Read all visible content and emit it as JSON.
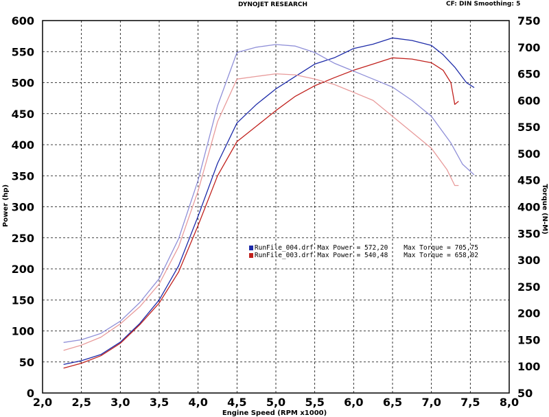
{
  "header": {
    "title": "DYNOJET RESEARCH",
    "settings": "CF: DIN  Smoothing: 5"
  },
  "chart_data": {
    "type": "line",
    "xlabel": "Engine Speed (RPM x1000)",
    "ylabel_left": "Power (hp)",
    "ylabel_right": "Torque (N-M)",
    "xlim": [
      2.0,
      8.0
    ],
    "ylim_left": [
      0,
      600
    ],
    "ylim_right": [
      50,
      750
    ],
    "x_ticks": [
      "2,0",
      "2,5",
      "3,0",
      "3,5",
      "4,0",
      "4,5",
      "5,0",
      "5,5",
      "6,0",
      "6,5",
      "7,0",
      "7,5",
      "8,0"
    ],
    "y_ticks_left": [
      "0",
      "50",
      "100",
      "150",
      "200",
      "250",
      "300",
      "350",
      "400",
      "450",
      "500",
      "550",
      "600"
    ],
    "y_ticks_right": [
      "50",
      "100",
      "150",
      "200",
      "250",
      "300",
      "350",
      "400",
      "450",
      "500",
      "550",
      "600",
      "650",
      "700",
      "750"
    ],
    "grid": true,
    "legend": [
      {
        "file": "RunFile_004.drf",
        "power_label": "Max Power = 572,20",
        "torque_label": "Max Torque = 705,75",
        "color": "#1c2aa8"
      },
      {
        "file": "RunFile_003.drf",
        "power_label": "Max Power = 540,48",
        "torque_label": "Max Torque = 658,02",
        "color": "#c0201c"
      }
    ],
    "series": [
      {
        "file": "RunFile_004.drf",
        "measure": "power",
        "axis": "left",
        "color": "#1c2aa8",
        "x": [
          2.27,
          2.5,
          2.75,
          3.0,
          3.25,
          3.5,
          3.75,
          4.0,
          4.25,
          4.5,
          4.75,
          5.0,
          5.25,
          5.5,
          5.75,
          6.0,
          6.25,
          6.5,
          6.75,
          7.0,
          7.15,
          7.3,
          7.45,
          7.55
        ],
        "y": [
          46,
          52,
          62,
          82,
          112,
          150,
          205,
          285,
          370,
          435,
          465,
          490,
          510,
          530,
          540,
          555,
          562,
          572,
          568,
          560,
          545,
          525,
          500,
          492
        ]
      },
      {
        "file": "RunFile_003.drf",
        "measure": "power",
        "axis": "left",
        "color": "#c0201c",
        "x": [
          2.27,
          2.5,
          2.75,
          3.0,
          3.25,
          3.5,
          3.75,
          4.0,
          4.25,
          4.5,
          4.75,
          5.0,
          5.25,
          5.5,
          5.75,
          6.0,
          6.25,
          6.5,
          6.75,
          7.0,
          7.15,
          7.25,
          7.3,
          7.35
        ],
        "y": [
          40,
          48,
          60,
          80,
          110,
          145,
          195,
          270,
          350,
          405,
          430,
          455,
          478,
          495,
          508,
          520,
          530,
          540,
          538,
          532,
          520,
          500,
          465,
          470
        ]
      },
      {
        "file": "RunFile_004.drf",
        "measure": "torque",
        "axis": "right",
        "color": "#8f8fd8",
        "x": [
          2.27,
          2.5,
          2.75,
          3.0,
          3.25,
          3.5,
          3.75,
          4.0,
          4.25,
          4.5,
          4.75,
          5.0,
          5.25,
          5.5,
          5.75,
          6.0,
          6.25,
          6.5,
          6.75,
          7.0,
          7.25,
          7.4,
          7.55
        ],
        "y": [
          145,
          150,
          162,
          185,
          220,
          265,
          340,
          450,
          590,
          690,
          700,
          705,
          702,
          690,
          670,
          655,
          640,
          625,
          600,
          570,
          520,
          480,
          460
        ]
      },
      {
        "file": "RunFile_003.drf",
        "measure": "torque",
        "axis": "right",
        "color": "#e89a9a",
        "x": [
          2.27,
          2.5,
          2.75,
          3.0,
          3.25,
          3.5,
          3.75,
          4.0,
          4.25,
          4.5,
          4.75,
          5.0,
          5.25,
          5.5,
          5.75,
          6.0,
          6.25,
          6.5,
          6.75,
          7.0,
          7.2,
          7.3,
          7.35
        ],
        "y": [
          130,
          140,
          155,
          180,
          212,
          255,
          325,
          430,
          560,
          640,
          645,
          650,
          648,
          640,
          630,
          615,
          600,
          570,
          540,
          510,
          470,
          440,
          440
        ]
      }
    ]
  }
}
